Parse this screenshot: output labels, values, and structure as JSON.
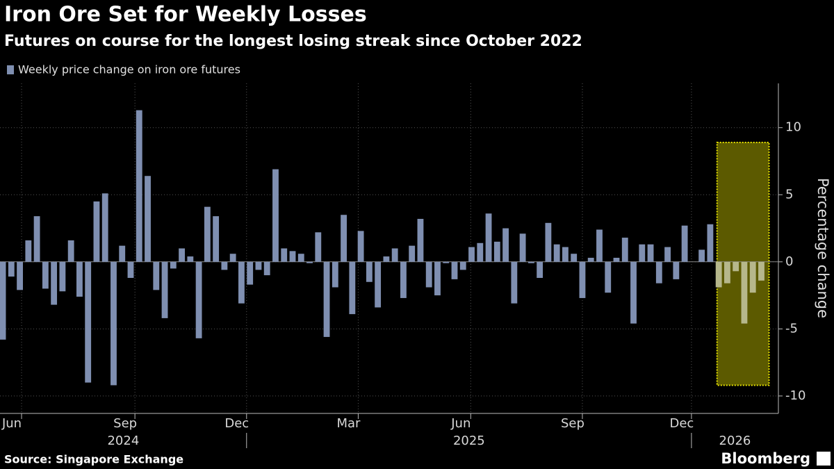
{
  "chart_data": {
    "type": "bar",
    "title": "Iron Ore Set for Weekly Losses",
    "subtitle": "Futures on course for the longest losing streak since October 2022",
    "legend_label": "Weekly price change on iron ore futures",
    "y_axis_label": "Percentage change",
    "source": "Source: Singapore Exchange",
    "brand": "Bloomberg",
    "color": "#7f8fb1",
    "highlight_color": "#b6b78b",
    "highlight": {
      "xlim": [
        83.8,
        89.9
      ],
      "ylim": [
        -9.2,
        8.9
      ],
      "fill": "#5c5a00",
      "stroke": "#e6e200"
    },
    "values": [
      -5.8,
      -1.1,
      -2.1,
      1.6,
      3.4,
      -2.0,
      -3.2,
      -2.2,
      1.6,
      -2.6,
      -9.0,
      4.5,
      5.1,
      -9.2,
      1.2,
      -1.2,
      11.3,
      6.4,
      -2.1,
      -4.2,
      -0.5,
      1.0,
      0.4,
      -5.7,
      4.1,
      3.4,
      -0.6,
      0.6,
      -3.1,
      -1.7,
      -0.6,
      -1.0,
      6.9,
      1.0,
      0.8,
      0.6,
      -0.1,
      2.2,
      -5.6,
      -1.9,
      3.5,
      -3.9,
      2.3,
      -1.5,
      -3.4,
      0.4,
      1.0,
      -2.7,
      1.2,
      3.2,
      -1.9,
      -2.5,
      -0.1,
      -1.3,
      -0.6,
      1.1,
      1.4,
      3.6,
      1.5,
      2.5,
      -3.1,
      2.1,
      -0.1,
      -1.2,
      2.9,
      1.3,
      1.1,
      0.6,
      -2.7,
      0.3,
      2.4,
      -2.3,
      0.3,
      1.8,
      -4.6,
      1.3,
      1.3,
      -1.6,
      1.1,
      -1.3,
      2.7,
      0.0,
      0.9,
      2.8,
      -1.9,
      -1.6,
      -0.7,
      -4.6,
      -2.3,
      -1.4
    ],
    "xlim": [
      -0.33,
      91.0
    ],
    "xticks": [
      {
        "value": 2.2,
        "label": "Jun"
      },
      {
        "value": 15.5,
        "label": "Sep"
      },
      {
        "value": 28.6,
        "label": "Dec"
      },
      {
        "value": 41.7,
        "label": "Mar"
      },
      {
        "value": 54.9,
        "label": "Jun"
      },
      {
        "value": 68.0,
        "label": "Sep"
      },
      {
        "value": 80.8,
        "label": "Dec"
      }
    ],
    "year_groups": [
      {
        "label": "2024",
        "from": -0.33,
        "to": 28.6
      },
      {
        "label": "2025",
        "from": 28.6,
        "to": 80.8
      },
      {
        "label": "2026",
        "from": 80.8,
        "to": 91.0
      }
    ],
    "ylim": [
      -11.3,
      13.3
    ],
    "yticks": [
      10,
      5,
      0,
      -5,
      -10
    ],
    "grid": true
  }
}
